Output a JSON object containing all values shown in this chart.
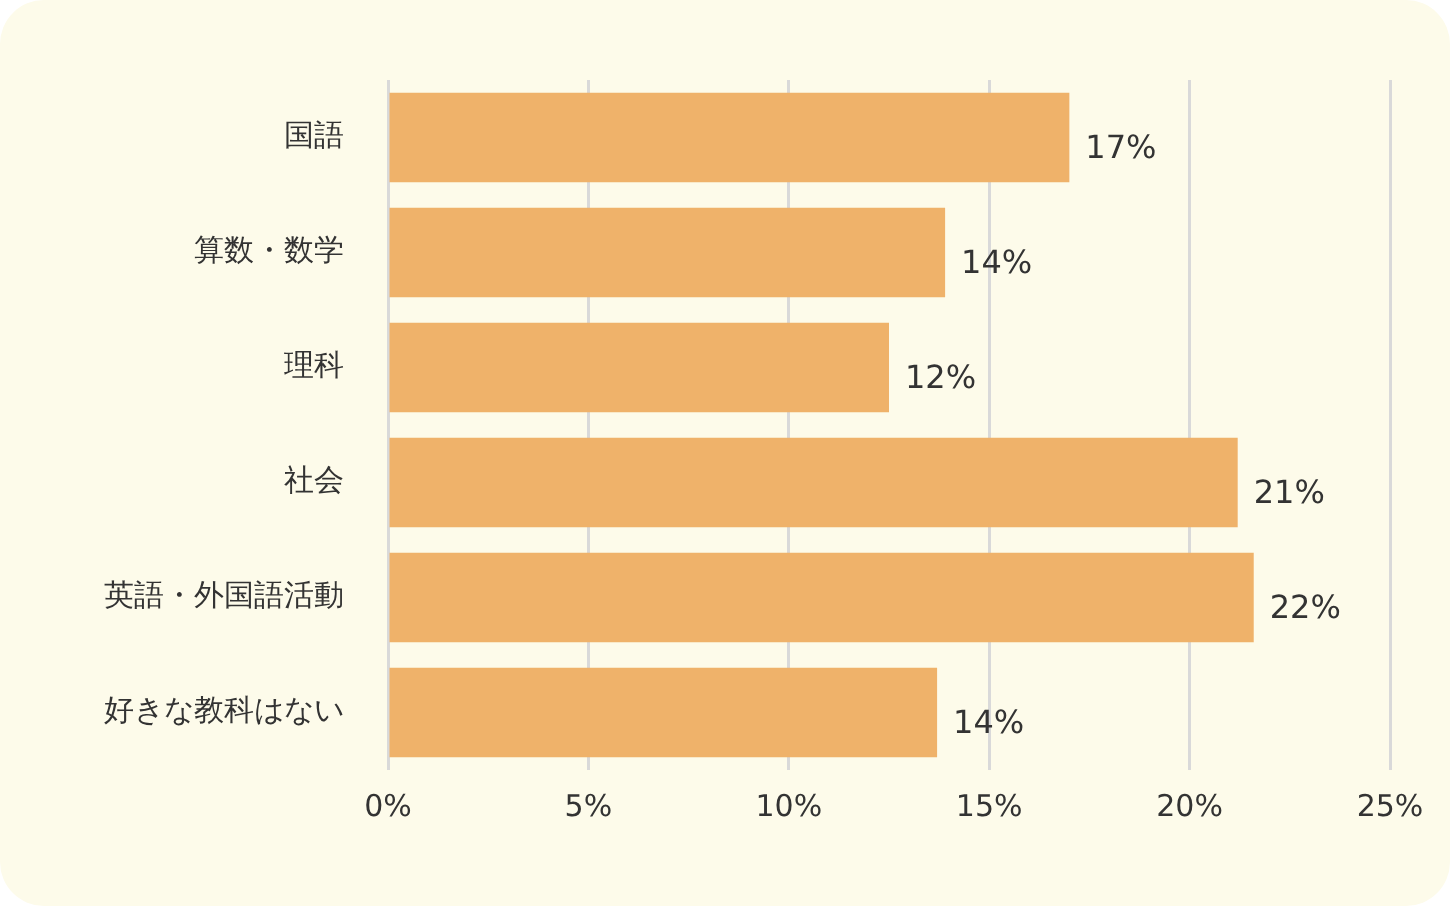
{
  "chart_data": {
    "type": "bar",
    "orientation": "horizontal",
    "categories": [
      "国語",
      "算数・数学",
      "理科",
      "社会",
      "英語・外国語活動",
      "好きな教科はない"
    ],
    "values": [
      17.0,
      13.9,
      12.5,
      21.2,
      21.6,
      13.7
    ],
    "value_labels": [
      "17%",
      "14%",
      "12%",
      "21%",
      "22%",
      "14%"
    ],
    "color": "#efb26a",
    "xlim": [
      0,
      25
    ],
    "xticks": [
      {
        "value": 0,
        "label": "0%"
      },
      {
        "value": 5,
        "label": "5%"
      },
      {
        "value": 10,
        "label": "10%"
      },
      {
        "value": 15,
        "label": "15%"
      },
      {
        "value": 20,
        "label": "20%"
      },
      {
        "value": 25,
        "label": "25%"
      }
    ],
    "grid": "x",
    "legend": false
  }
}
